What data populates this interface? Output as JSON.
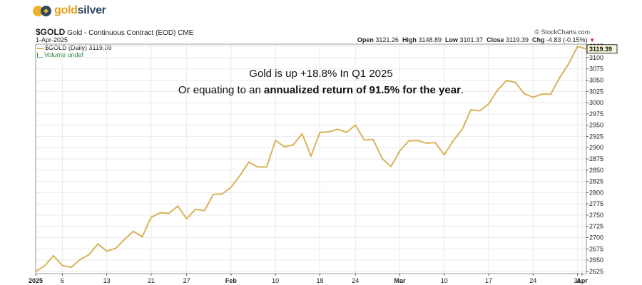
{
  "brand": {
    "gold_word": "gold",
    "silver_word": "silver",
    "gold_color": "#E3A21A",
    "silver_color": "#2C4760"
  },
  "header": {
    "symbol": "$GOLD",
    "description": "Gold - Continuous Contract (EOD)",
    "exchange": "CME",
    "date": "1-Apr-2025",
    "source": "© StockCharts.com",
    "open_label": "Open",
    "open": "3121.26",
    "high_label": "High",
    "high": "3148.89",
    "low_label": "Low",
    "low": "3101.37",
    "close_label": "Close",
    "close": "3119.39",
    "chg_label": "Chg",
    "chg": "-4.83 (-0.15%)"
  },
  "legend": {
    "series_label": "$GOLD (Daily) 3119.39",
    "volume_label": "Volume undef"
  },
  "annotation": {
    "line1": "Gold is up +18.8% In Q1 2025",
    "line2_prefix": "Or equating to an ",
    "line2_bold": "annualized return of 91.5% for the year",
    "line2_suffix": "."
  },
  "chart_data": {
    "type": "line",
    "series": [
      {
        "name": "$GOLD (Daily)",
        "color": "#D9B35A",
        "values": [
          2625,
          2637,
          2660,
          2638,
          2634,
          2651,
          2662,
          2686,
          2670,
          2676,
          2696,
          2714,
          2702,
          2745,
          2755,
          2754,
          2770,
          2742,
          2763,
          2760,
          2796,
          2797,
          2812,
          2838,
          2868,
          2857,
          2857,
          2916,
          2902,
          2906,
          2931,
          2881,
          2934,
          2935,
          2941,
          2934,
          2950,
          2917,
          2918,
          2876,
          2858,
          2893,
          2915,
          2916,
          2910,
          2911,
          2884,
          2915,
          2940,
          2984,
          2982,
          2997,
          3028,
          3049,
          3045,
          3020,
          3012,
          3019,
          3019,
          3056,
          3086,
          3125,
          3119.39
        ]
      }
    ],
    "x_tick_labels": [
      "2025",
      "6",
      "13",
      "21",
      "27",
      "Feb",
      "10",
      "18",
      "24",
      "Mar",
      "10",
      "17",
      "24",
      "31",
      "Apr"
    ],
    "y_ticks": [
      2625,
      2650,
      2675,
      2700,
      2725,
      2750,
      2775,
      2800,
      2825,
      2850,
      2875,
      2900,
      2925,
      2950,
      2975,
      3000,
      3025,
      3050,
      3075,
      3100,
      3125
    ],
    "ylim": [
      2620,
      3130
    ],
    "last_value_label": "3119.39",
    "grid": true,
    "grid_color": "#E9E9E9",
    "axis_position": "right"
  }
}
